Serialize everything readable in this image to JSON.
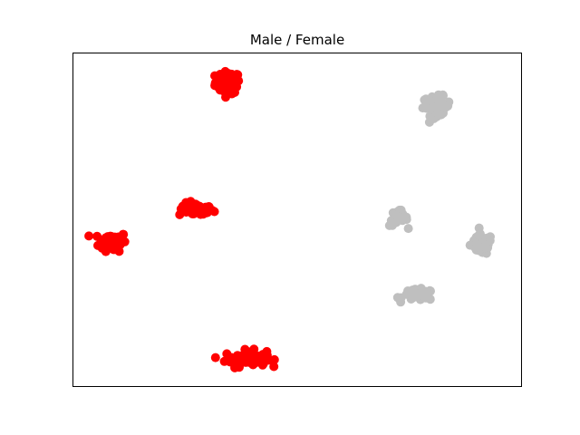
{
  "chart_data": {
    "type": "scatter",
    "title": "Male / Female",
    "xlabel": "",
    "ylabel": "",
    "xlim": [
      0,
      100
    ],
    "ylim": [
      0,
      100
    ],
    "ticks_visible": false,
    "grid": false,
    "colors": {
      "male": "#ff0000",
      "female": "#bfbfbf"
    },
    "series": [
      {
        "color": "#ff0000",
        "clusters": [
          {
            "center": [
              34.5,
              91.0
            ],
            "spread": [
              2.5,
              3.0
            ],
            "count": 70
          },
          {
            "center": [
              27.5,
              53.0
            ],
            "spread": [
              3.5,
              1.8
            ],
            "count": 45
          },
          {
            "center": [
              9.0,
              43.5
            ],
            "spread": [
              2.8,
              2.6
            ],
            "count": 70
          },
          {
            "center": [
              38.5,
              8.5
            ],
            "spread": [
              4.2,
              2.2
            ],
            "count": 65
          }
        ]
      },
      {
        "color": "#bfbfbf",
        "clusters": [
          {
            "center": [
              81.0,
              84.0
            ],
            "spread": [
              2.8,
              2.6
            ],
            "count": 60
          },
          {
            "center": [
              72.5,
              50.5
            ],
            "spread": [
              1.8,
              2.2
            ],
            "count": 35
          },
          {
            "center": [
              91.0,
              42.5
            ],
            "spread": [
              2.2,
              2.8
            ],
            "count": 55
          },
          {
            "center": [
              77.0,
              27.5
            ],
            "spread": [
              3.2,
              1.5
            ],
            "count": 45
          }
        ]
      }
    ]
  }
}
